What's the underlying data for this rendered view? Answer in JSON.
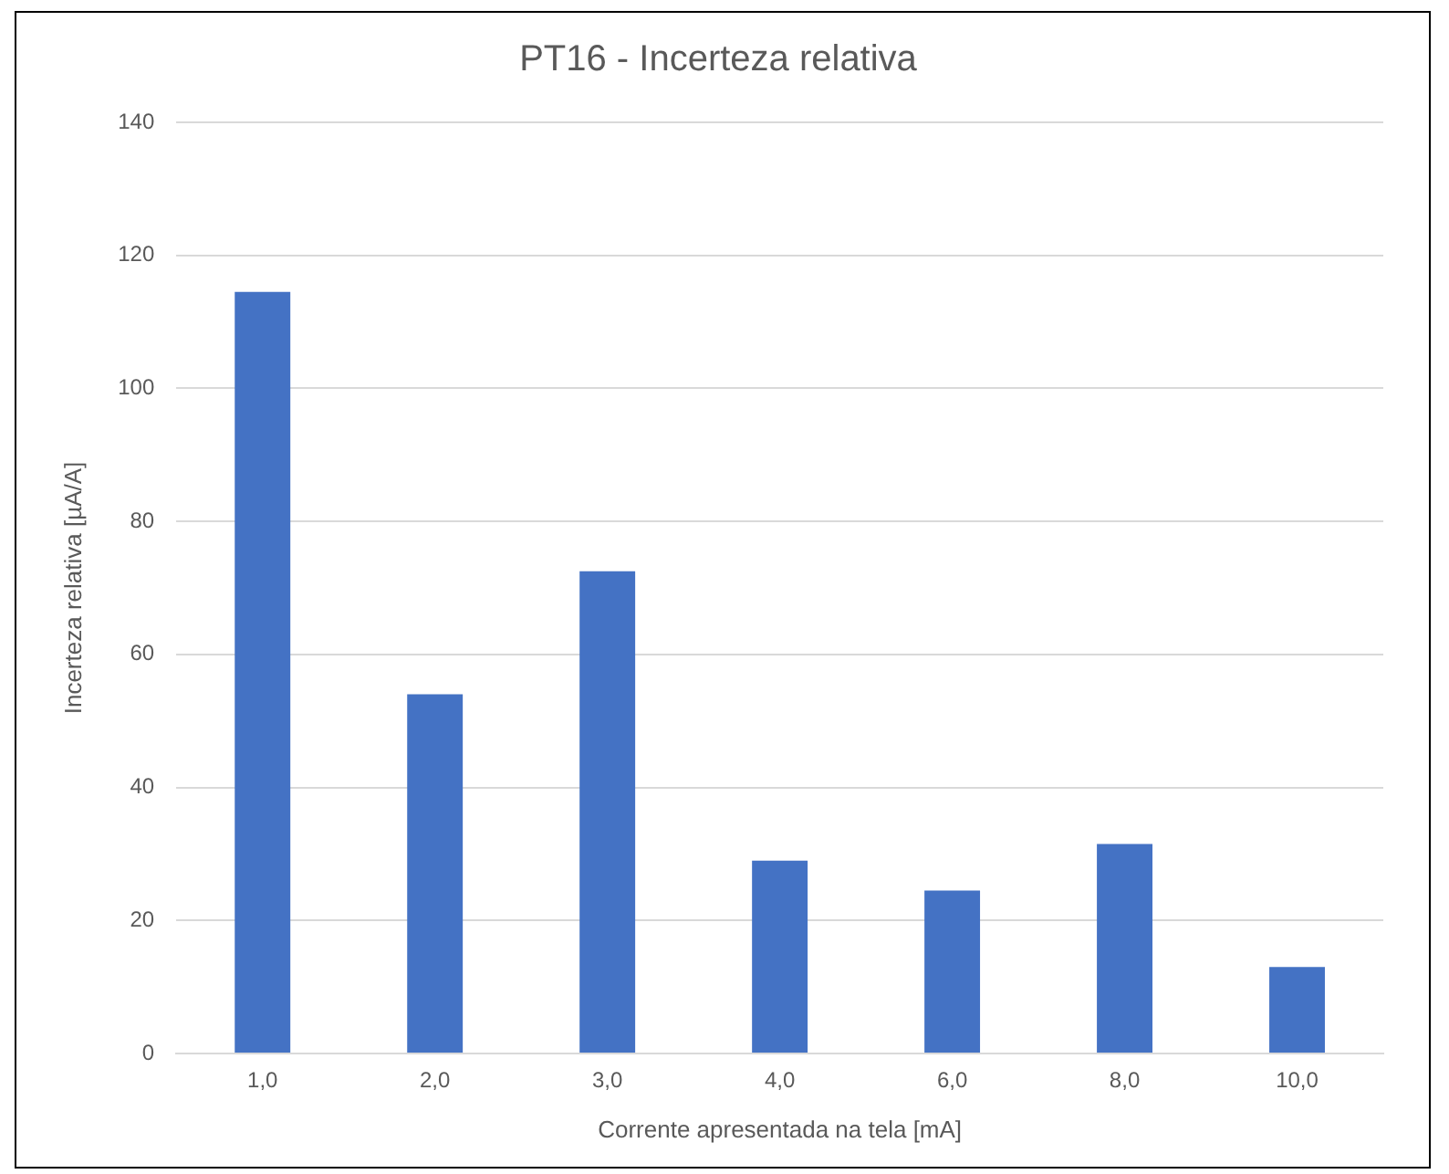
{
  "chart_data": {
    "type": "bar",
    "title": "PT16 - Incerteza relativa",
    "xlabel": "Corrente apresentada na tela [mA]",
    "ylabel": "Incerteza relativa [µA/A]",
    "categories": [
      "1,0",
      "2,0",
      "3,0",
      "4,0",
      "6,0",
      "8,0",
      "10,0"
    ],
    "values": [
      114.5,
      54,
      72.5,
      29,
      24.5,
      31.5,
      13
    ],
    "color": "#4472c4",
    "ylim": [
      0,
      140
    ],
    "yticks": [
      0,
      20,
      40,
      60,
      80,
      100,
      120,
      140
    ],
    "grid": "y",
    "legend": false
  }
}
